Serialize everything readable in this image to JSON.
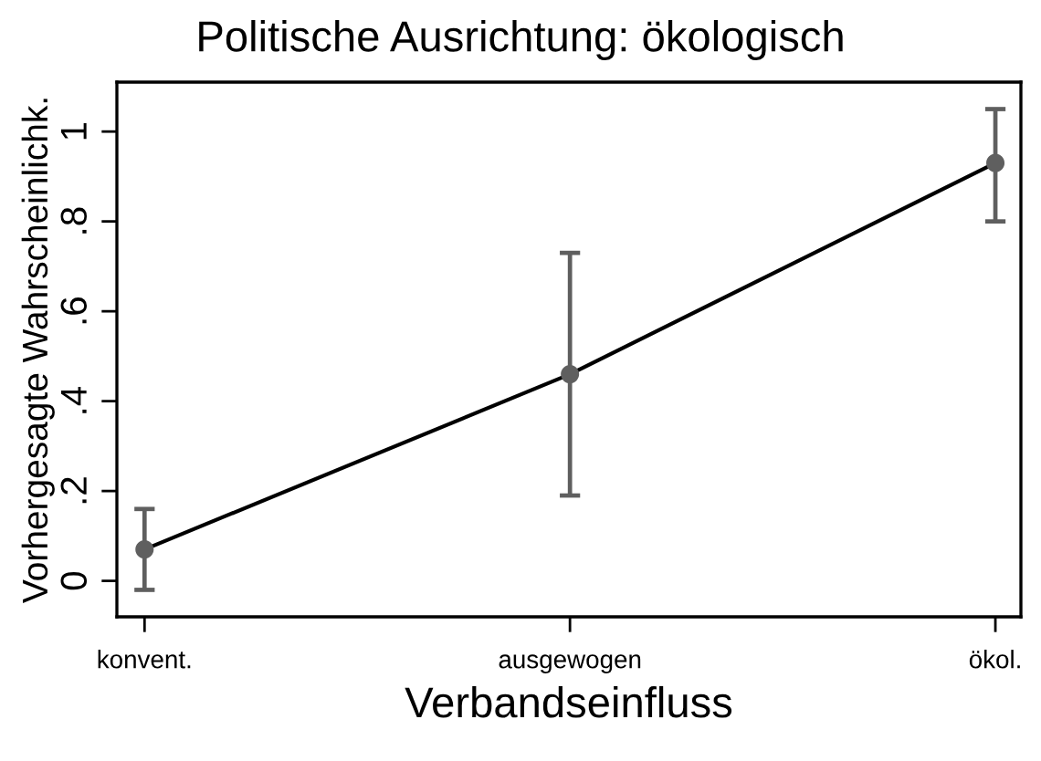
{
  "chart_data": {
    "type": "line",
    "title": "Politische Ausrichtung: ökologisch",
    "xlabel": "Verbandseinfluss",
    "ylabel": "Vorhergesagte Wahrscheinlichk.",
    "categories": [
      "konvent.",
      "ausgewogen",
      "ökol."
    ],
    "series": [
      {
        "color": "#000000",
        "colors": [
          "#5f5f5f",
          "#5f5f5f",
          "#5f5f5f"
        ],
        "values": [
          0.07,
          0.46,
          0.93
        ],
        "errors": [
          [
            -0.02,
            0.16
          ],
          [
            0.19,
            0.73
          ],
          [
            0.8,
            1.05
          ]
        ]
      }
    ],
    "ylim": [
      -0.08,
      1.11
    ],
    "yticks": [
      0,
      {
        "value": 0.2,
        "label": ".2"
      },
      {
        "value": 0.4,
        "label": ".4"
      },
      {
        "value": 0.6,
        "label": ".6"
      },
      {
        "value": 0.8,
        "label": ".8"
      },
      1
    ],
    "marker": "circle",
    "line_style": "solid"
  }
}
